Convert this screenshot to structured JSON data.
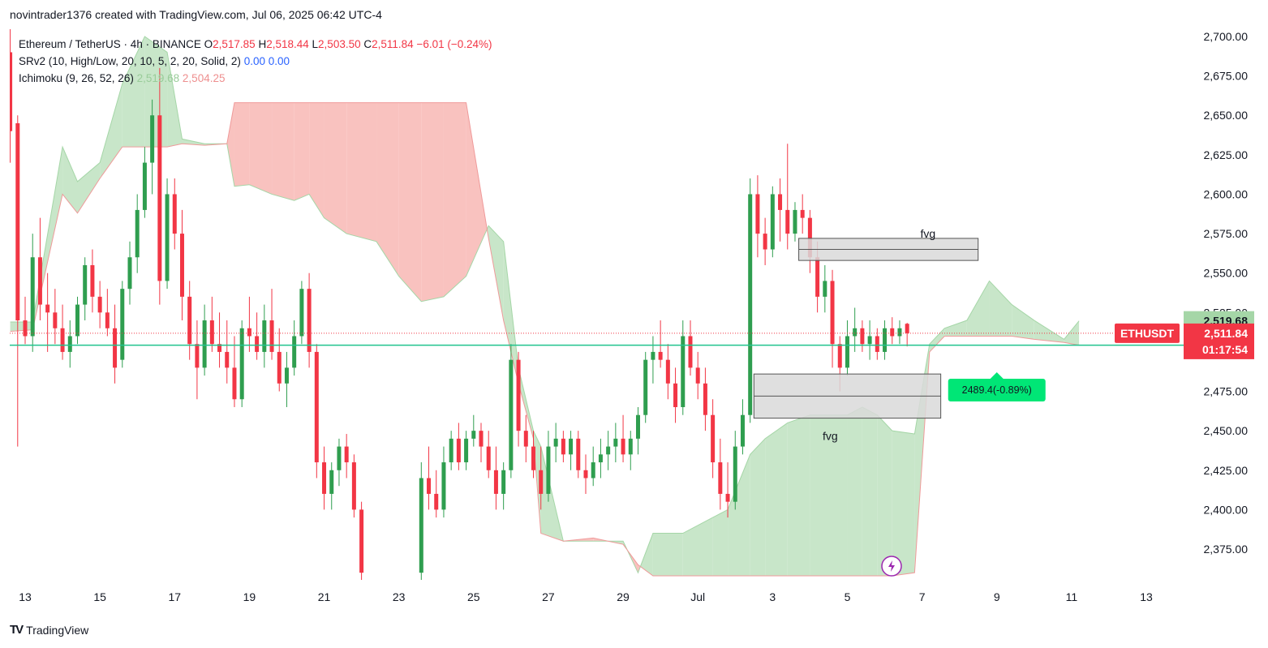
{
  "header": {
    "caption": "novintrader1376 created with TradingView.com, Jul 06, 2025 06:42 UTC-4"
  },
  "legend": {
    "symbol": "Ethereum / TetherUS · 4h · BINANCE",
    "o_label": "O",
    "o_value": "2,517.85",
    "h_label": "H",
    "h_value": "2,518.44",
    "l_label": "L",
    "l_value": "2,503.50",
    "c_label": "C",
    "c_value": "2,511.84",
    "change": "−6.01 (−0.24%)",
    "srv2_name": "SRv2 (10, High/Low, 20, 10, 5, 2, 20, Solid, 2)",
    "srv2_v1": "0.00",
    "srv2_v2": "0.00",
    "ichimoku_name": "Ichimoku (9, 26, 52, 26)",
    "ichimoku_v1": "2,519.68",
    "ichimoku_v2": "2,504.25"
  },
  "footer": {
    "logo_text": "TradingView",
    "logo_mark": "TV"
  },
  "colors": {
    "up": "#26a269",
    "up_body": "#2f9e4f",
    "down": "#f23645",
    "cloud_green": "#c8e6c9",
    "cloud_red": "#f9c2bf",
    "support_line": "#22c38e",
    "grid": "#ffffff",
    "axis_text": "#131722",
    "price_tag": "#f23645",
    "span_green_tag": "#a5d6a7",
    "span_red_tag": "#f4a9a6",
    "measure_tag": "#00e676",
    "fvg_fill": "#d9d9d9"
  },
  "chart_data": {
    "type": "candlestick",
    "title": "Ethereum / TetherUS · 4h · BINANCE",
    "ylim": [
      2355,
      2705
    ],
    "y_ticks": [
      2700,
      2675,
      2650,
      2625,
      2600,
      2575,
      2550,
      2525,
      2500,
      2475,
      2450,
      2425,
      2400,
      2375
    ],
    "y_tick_labels": [
      "2,700.00",
      "2,675.00",
      "2,650.00",
      "2,625.00",
      "2,600.00",
      "2,575.00",
      "2,550.00",
      "2,525.00",
      "2,500.00",
      "2,475.00",
      "2,450.00",
      "2,425.00",
      "2,400.00",
      "2,375.00"
    ],
    "x_tick_labels": [
      "13",
      "15",
      "17",
      "19",
      "21",
      "23",
      "25",
      "27",
      "29",
      "Jul",
      "3",
      "5",
      "7",
      "9",
      "11",
      "13"
    ],
    "x_tick_days": [
      13,
      15,
      17,
      19,
      21,
      23,
      25,
      27,
      29,
      31,
      33,
      35,
      37,
      39,
      41,
      43
    ],
    "xlim_days": [
      12.6,
      45.0
    ],
    "candles": [
      [
        12.6,
        2690,
        2705,
        2620,
        2640
      ],
      [
        12.8,
        2645,
        2650,
        2440,
        2520
      ],
      [
        13.0,
        2520,
        2535,
        2505,
        2510
      ],
      [
        13.2,
        2510,
        2575,
        2500,
        2560
      ],
      [
        13.4,
        2560,
        2585,
        2520,
        2530
      ],
      [
        13.6,
        2530,
        2550,
        2500,
        2525
      ],
      [
        13.8,
        2525,
        2540,
        2505,
        2515
      ],
      [
        14.0,
        2515,
        2530,
        2495,
        2500
      ],
      [
        14.2,
        2500,
        2520,
        2490,
        2510
      ],
      [
        14.4,
        2510,
        2535,
        2505,
        2530
      ],
      [
        14.6,
        2530,
        2560,
        2520,
        2555
      ],
      [
        14.8,
        2555,
        2565,
        2525,
        2535
      ],
      [
        15.0,
        2535,
        2545,
        2515,
        2525
      ],
      [
        15.2,
        2525,
        2540,
        2510,
        2515
      ],
      [
        15.4,
        2515,
        2530,
        2480,
        2490
      ],
      [
        15.6,
        2495,
        2545,
        2490,
        2540
      ],
      [
        15.8,
        2540,
        2570,
        2530,
        2560
      ],
      [
        16.0,
        2560,
        2600,
        2550,
        2590
      ],
      [
        16.2,
        2590,
        2630,
        2585,
        2620
      ],
      [
        16.4,
        2620,
        2660,
        2600,
        2650
      ],
      [
        16.6,
        2650,
        2680,
        2530,
        2545
      ],
      [
        16.8,
        2545,
        2610,
        2540,
        2600
      ],
      [
        17.0,
        2600,
        2610,
        2565,
        2575
      ],
      [
        17.2,
        2575,
        2590,
        2520,
        2535
      ],
      [
        17.4,
        2535,
        2545,
        2495,
        2505
      ],
      [
        17.6,
        2505,
        2520,
        2470,
        2490
      ],
      [
        17.8,
        2490,
        2530,
        2485,
        2520
      ],
      [
        18.0,
        2520,
        2535,
        2500,
        2505
      ],
      [
        18.2,
        2505,
        2525,
        2490,
        2500
      ],
      [
        18.4,
        2500,
        2520,
        2480,
        2490
      ],
      [
        18.6,
        2490,
        2510,
        2465,
        2470
      ],
      [
        18.8,
        2470,
        2520,
        2465,
        2515
      ],
      [
        19.0,
        2515,
        2535,
        2500,
        2510
      ],
      [
        19.2,
        2510,
        2525,
        2495,
        2500
      ],
      [
        19.4,
        2500,
        2530,
        2490,
        2520
      ],
      [
        19.6,
        2520,
        2540,
        2495,
        2500
      ],
      [
        19.8,
        2500,
        2515,
        2475,
        2480
      ],
      [
        20.0,
        2480,
        2500,
        2465,
        2490
      ],
      [
        20.2,
        2490,
        2520,
        2485,
        2510
      ],
      [
        20.4,
        2510,
        2545,
        2505,
        2540
      ],
      [
        20.6,
        2540,
        2550,
        2490,
        2500
      ],
      [
        20.8,
        2500,
        2505,
        2420,
        2430
      ],
      [
        21.0,
        2430,
        2440,
        2400,
        2410
      ],
      [
        21.2,
        2410,
        2430,
        2400,
        2425
      ],
      [
        21.4,
        2425,
        2445,
        2415,
        2440
      ],
      [
        21.6,
        2440,
        2448,
        2420,
        2430
      ],
      [
        21.8,
        2430,
        2435,
        2395,
        2400
      ],
      [
        22.0,
        2400,
        2405,
        2355,
        2360
      ],
      [
        23.6,
        2360,
        2430,
        2355,
        2420
      ],
      [
        23.8,
        2420,
        2440,
        2400,
        2410
      ],
      [
        24.0,
        2410,
        2425,
        2395,
        2400
      ],
      [
        24.2,
        2400,
        2440,
        2395,
        2430
      ],
      [
        24.4,
        2430,
        2450,
        2425,
        2445
      ],
      [
        24.6,
        2445,
        2455,
        2425,
        2430
      ],
      [
        24.8,
        2430,
        2450,
        2425,
        2445
      ],
      [
        25.0,
        2445,
        2460,
        2440,
        2450
      ],
      [
        25.2,
        2450,
        2455,
        2430,
        2440
      ],
      [
        25.4,
        2440,
        2450,
        2420,
        2425
      ],
      [
        25.6,
        2425,
        2440,
        2400,
        2410
      ],
      [
        25.8,
        2410,
        2430,
        2400,
        2425
      ],
      [
        26.0,
        2425,
        2505,
        2420,
        2495
      ],
      [
        26.2,
        2495,
        2500,
        2440,
        2450
      ],
      [
        26.4,
        2450,
        2460,
        2430,
        2440
      ],
      [
        26.6,
        2440,
        2450,
        2420,
        2425
      ],
      [
        26.8,
        2425,
        2440,
        2400,
        2410
      ],
      [
        27.0,
        2410,
        2450,
        2405,
        2440
      ],
      [
        27.2,
        2440,
        2455,
        2430,
        2445
      ],
      [
        27.4,
        2445,
        2450,
        2430,
        2435
      ],
      [
        27.6,
        2435,
        2450,
        2425,
        2445
      ],
      [
        27.8,
        2445,
        2450,
        2420,
        2425
      ],
      [
        28.0,
        2425,
        2435,
        2410,
        2420
      ],
      [
        28.2,
        2420,
        2440,
        2415,
        2430
      ],
      [
        28.4,
        2430,
        2445,
        2420,
        2435
      ],
      [
        28.6,
        2435,
        2450,
        2425,
        2440
      ],
      [
        28.8,
        2440,
        2455,
        2430,
        2445
      ],
      [
        29.0,
        2445,
        2460,
        2430,
        2435
      ],
      [
        29.2,
        2435,
        2450,
        2425,
        2445
      ],
      [
        29.4,
        2445,
        2465,
        2435,
        2460
      ],
      [
        29.6,
        2460,
        2500,
        2455,
        2495
      ],
      [
        29.8,
        2495,
        2510,
        2480,
        2500
      ],
      [
        30.0,
        2500,
        2520,
        2490,
        2495
      ],
      [
        30.2,
        2495,
        2505,
        2470,
        2480
      ],
      [
        30.4,
        2480,
        2490,
        2455,
        2465
      ],
      [
        30.6,
        2465,
        2520,
        2460,
        2510
      ],
      [
        30.8,
        2510,
        2520,
        2485,
        2490
      ],
      [
        31.0,
        2490,
        2500,
        2470,
        2480
      ],
      [
        31.2,
        2480,
        2490,
        2450,
        2460
      ],
      [
        31.4,
        2460,
        2470,
        2420,
        2430
      ],
      [
        31.6,
        2430,
        2445,
        2400,
        2410
      ],
      [
        31.8,
        2410,
        2430,
        2395,
        2405
      ],
      [
        32.0,
        2405,
        2450,
        2400,
        2440
      ],
      [
        32.2,
        2440,
        2470,
        2435,
        2460
      ],
      [
        32.4,
        2460,
        2610,
        2455,
        2600
      ],
      [
        32.6,
        2600,
        2612,
        2560,
        2575
      ],
      [
        32.8,
        2575,
        2585,
        2555,
        2565
      ],
      [
        33.0,
        2565,
        2605,
        2560,
        2600
      ],
      [
        33.2,
        2600,
        2610,
        2570,
        2590
      ],
      [
        33.4,
        2590,
        2632,
        2565,
        2575
      ],
      [
        33.6,
        2575,
        2595,
        2570,
        2590
      ],
      [
        33.8,
        2590,
        2600,
        2575,
        2585
      ],
      [
        34.0,
        2585,
        2590,
        2550,
        2560
      ],
      [
        34.2,
        2560,
        2570,
        2525,
        2535
      ],
      [
        34.4,
        2535,
        2555,
        2525,
        2545
      ],
      [
        34.6,
        2545,
        2552,
        2490,
        2505
      ],
      [
        34.8,
        2505,
        2510,
        2475,
        2490
      ],
      [
        35.0,
        2490,
        2520,
        2485,
        2510
      ],
      [
        35.2,
        2510,
        2528,
        2500,
        2515
      ],
      [
        35.4,
        2515,
        2520,
        2500,
        2505
      ],
      [
        35.6,
        2505,
        2520,
        2495,
        2510
      ],
      [
        35.8,
        2510,
        2515,
        2495,
        2500
      ],
      [
        36.0,
        2500,
        2520,
        2495,
        2515
      ],
      [
        36.2,
        2515,
        2522,
        2505,
        2510
      ],
      [
        36.4,
        2510,
        2520,
        2505,
        2515
      ],
      [
        36.6,
        2517.85,
        2518.44,
        2503.5,
        2511.84
      ]
    ],
    "fvg_zones": [
      {
        "label": "fvg",
        "x_days": [
          33.7,
          38.5
        ],
        "y": [
          2558,
          2572
        ],
        "mid": 2565
      },
      {
        "label": "fvg",
        "x_days": [
          32.5,
          37.5
        ],
        "y": [
          2458,
          2486
        ],
        "mid": 2472
      }
    ],
    "support_level": 2504.25,
    "current_price": 2511.84,
    "cloud_current": {
      "span_a": 2519.68,
      "span_b": 2504.25
    },
    "price_label": {
      "symbol": "ETHUSDT",
      "price": "2,511.84",
      "countdown": "01:17:54"
    },
    "span_a_label": "2,519.68",
    "span_b_label": "2,504.25",
    "measure_label": {
      "text": "2489.4(-0.89%)",
      "value": 2489.4,
      "x_day": 39.0
    },
    "cloud_points": [
      [
        12.6,
        2519,
        2513
      ],
      [
        13.2,
        2519,
        2514
      ],
      [
        14.0,
        2630,
        2600
      ],
      [
        14.4,
        2608,
        2588
      ],
      [
        15.0,
        2620,
        2610
      ],
      [
        15.6,
        2670,
        2630
      ],
      [
        16.2,
        2700,
        2630
      ],
      [
        16.8,
        2690,
        2630
      ],
      [
        17.2,
        2635,
        2632
      ],
      [
        17.8,
        2632,
        2631
      ],
      [
        18.4,
        2632,
        2632
      ],
      [
        18.6,
        2605,
        2658
      ],
      [
        19.0,
        2606,
        2658
      ],
      [
        19.6,
        2600,
        2658
      ],
      [
        20.2,
        2596,
        2658
      ],
      [
        20.6,
        2600,
        2658
      ],
      [
        21.0,
        2585,
        2658
      ],
      [
        21.6,
        2575,
        2658
      ],
      [
        22.4,
        2570,
        2658
      ],
      [
        23.0,
        2548,
        2658
      ],
      [
        23.6,
        2532,
        2658
      ],
      [
        24.2,
        2535,
        2658
      ],
      [
        24.8,
        2548,
        2658
      ],
      [
        25.4,
        2580,
        2572
      ],
      [
        25.8,
        2570,
        2520
      ],
      [
        26.2,
        2490,
        2480
      ],
      [
        26.6,
        2450,
        2445
      ],
      [
        26.8,
        2440,
        2385
      ],
      [
        27.4,
        2380,
        2380
      ],
      [
        28.2,
        2380,
        2382
      ],
      [
        29.0,
        2380,
        2378
      ],
      [
        29.4,
        2360,
        2365
      ],
      [
        29.8,
        2385,
        2358
      ],
      [
        30.6,
        2385,
        2358
      ],
      [
        31.4,
        2395,
        2358
      ],
      [
        31.8,
        2400,
        2358
      ],
      [
        32.4,
        2435,
        2358
      ],
      [
        32.8,
        2445,
        2358
      ],
      [
        33.4,
        2455,
        2358
      ],
      [
        34.0,
        2460,
        2358
      ],
      [
        35.0,
        2460,
        2358
      ],
      [
        35.4,
        2465,
        2358
      ],
      [
        35.8,
        2460,
        2358
      ],
      [
        36.2,
        2450,
        2358
      ],
      [
        36.8,
        2448,
        2360
      ],
      [
        37.2,
        2505,
        2500
      ],
      [
        37.6,
        2515,
        2510
      ],
      [
        38.2,
        2520,
        2510
      ],
      [
        38.8,
        2545,
        2510
      ],
      [
        39.4,
        2530,
        2510
      ],
      [
        40.0,
        2520,
        2508
      ],
      [
        40.8,
        2508,
        2506
      ],
      [
        41.2,
        2519.68,
        2504.25
      ]
    ]
  }
}
